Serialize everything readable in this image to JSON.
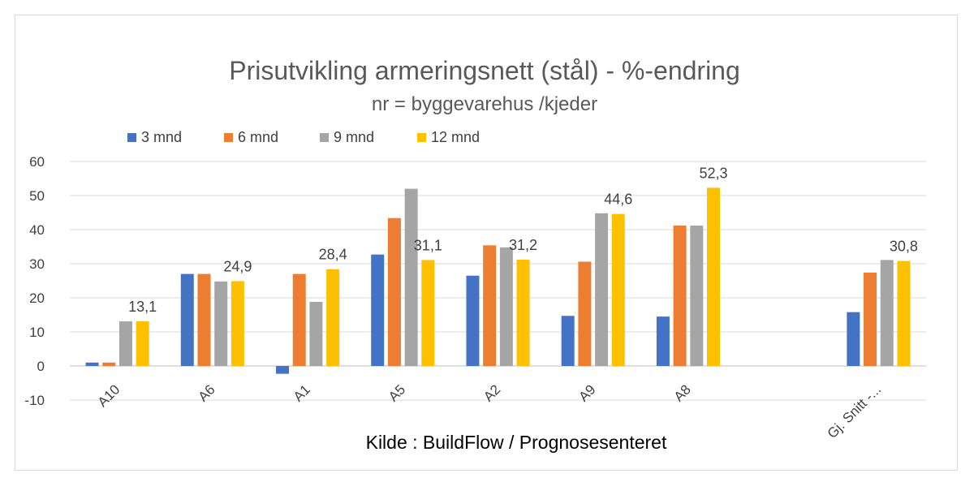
{
  "chart_data": {
    "type": "bar",
    "title": "Prisutvikling armeringsnett (stål) - %-endring",
    "subtitle": "nr = byggevarehus /kjeder",
    "source": "Kilde : BuildFlow / Prognosesenteret",
    "categories": [
      "A10",
      "A6",
      "A1",
      "A5",
      "A2",
      "A9",
      "A8",
      "",
      "Gj. Snitt -..."
    ],
    "series": [
      {
        "name": "3 mnd",
        "color": "#4472c4",
        "values": [
          1.0,
          27.0,
          -2.3,
          32.7,
          26.5,
          14.7,
          14.5,
          null,
          15.8
        ]
      },
      {
        "name": "6 mnd",
        "color": "#ed7d31",
        "values": [
          1.0,
          27.0,
          27.0,
          43.4,
          35.4,
          30.6,
          41.2,
          null,
          27.4
        ]
      },
      {
        "name": "9 mnd",
        "color": "#a5a5a5",
        "values": [
          13.1,
          24.8,
          18.8,
          52.0,
          34.8,
          44.8,
          41.2,
          null,
          31.1
        ]
      },
      {
        "name": "12 mnd",
        "color": "#ffc000",
        "values": [
          13.1,
          24.9,
          28.4,
          31.1,
          31.2,
          44.6,
          52.3,
          null,
          30.8
        ]
      }
    ],
    "data_labels": {
      "series": "12 mnd",
      "labels": [
        "13,1",
        "24,9",
        "28,4",
        "31,1",
        "31,2",
        "44,6",
        "52,3",
        "",
        "30,8"
      ]
    },
    "yticks": [
      "60",
      "50",
      "40",
      "30",
      "20",
      "10",
      "0",
      "-10"
    ],
    "ylim": [
      -10,
      60
    ],
    "grid": true,
    "legend_position": "top-left"
  }
}
